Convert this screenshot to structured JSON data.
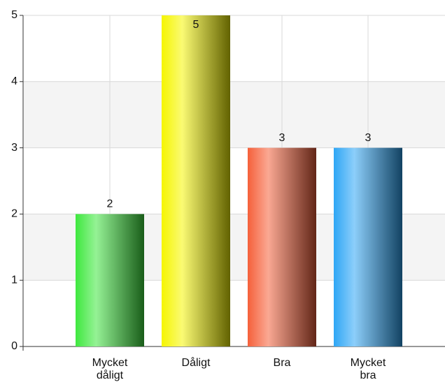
{
  "chart_data": {
    "type": "bar",
    "categories": [
      "Mycket dåligt",
      "Dåligt",
      "Bra",
      "Mycket bra"
    ],
    "values": [
      2,
      5,
      3,
      3
    ],
    "colors": [
      "#3ee83e",
      "#f5f500",
      "#f5603a",
      "#2ea6f5"
    ],
    "ylim": [
      0,
      5
    ],
    "yticks": [
      0,
      1,
      2,
      3,
      4,
      5
    ],
    "grid": true
  }
}
